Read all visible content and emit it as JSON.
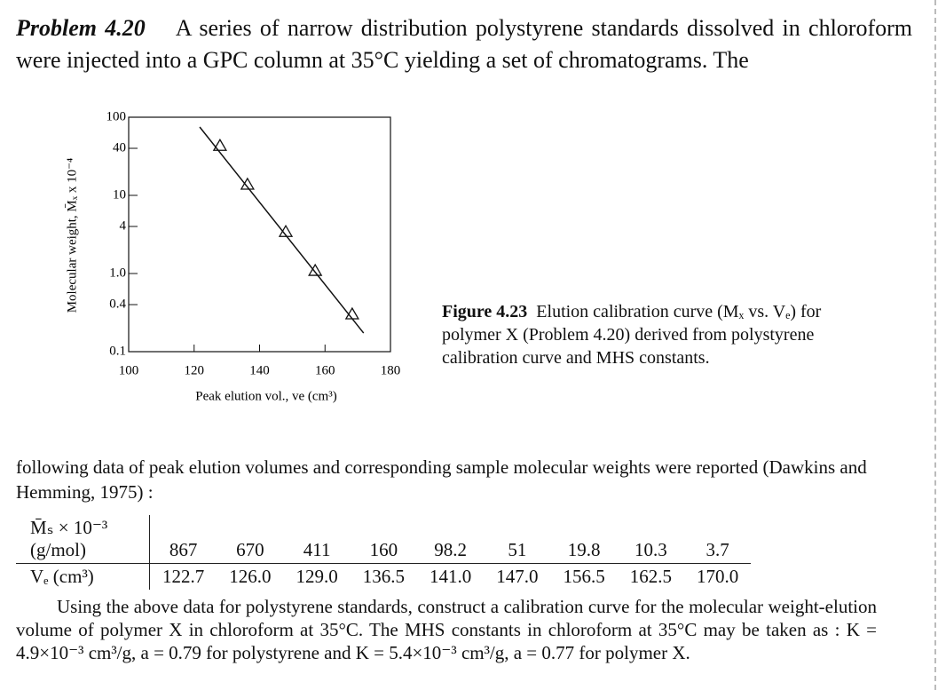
{
  "problem": {
    "label": "Problem 4.20",
    "text": "A series of narrow distribution polystyrene standards dissolved in chloroform were injected into a GPC column at 35°C yielding a set of chromatograms. The"
  },
  "figure": {
    "type": "scatter",
    "ylog": true,
    "color": "#111",
    "xlabel": "Peak elution vol., ve (cm³)",
    "ylabel": "Molecular weight, M̄ₓ x 10⁻⁴",
    "xlim": [
      100,
      180
    ],
    "xticks": [
      100,
      120,
      140,
      160,
      180
    ],
    "ylim": [
      0.1,
      100
    ],
    "yticks": [
      0.1,
      0.4,
      {
        "value": 1,
        "label": "1.0"
      },
      4,
      10,
      40,
      100
    ],
    "series": [
      {
        "marker": "triangle",
        "x": [
          127.9,
          136.3,
          148,
          157,
          168.3
        ],
        "values": [
          43,
          13.7,
          3.4,
          1.08,
          0.3
        ]
      },
      {
        "marker": "line",
        "x": [
          121.7,
          171.8
        ],
        "values": [
          75,
          0.173
        ]
      }
    ]
  },
  "caption": {
    "label": "Figure 4.23",
    "text": "Elution calibration curve (Mₓ vs. Vₑ) for polymer X (Problem 4.20) derived from polystyrene calibration curve and MHS constants."
  },
  "paragraph": "following data of peak elution volumes and corresponding sample molecular weights were reported (Dawkins and Hemming, 1975) :",
  "table": {
    "rows": [
      [
        "M̄ₛ × 10⁻³ (g/mol)",
        "867",
        "670",
        "411",
        "160",
        "98.2",
        "51",
        "19.8",
        "10.3",
        "3.7"
      ],
      [
        "Vₑ (cm³)",
        "122.7",
        "126.0",
        "129.0",
        "136.5",
        "141.0",
        "147.0",
        "156.5",
        "162.5",
        "170.0"
      ]
    ]
  },
  "question": "Using the above data for polystyrene standards, construct a calibration curve for the molecular weight-elution volume of polymer X in chloroform at 35°C. The MHS constants in chloroform at 35°C may be taken as : K = 4.9×10⁻³ cm³/g, a = 0.79 for polystyrene and K = 5.4×10⁻³ cm³/g, a = 0.77 for polymer X."
}
